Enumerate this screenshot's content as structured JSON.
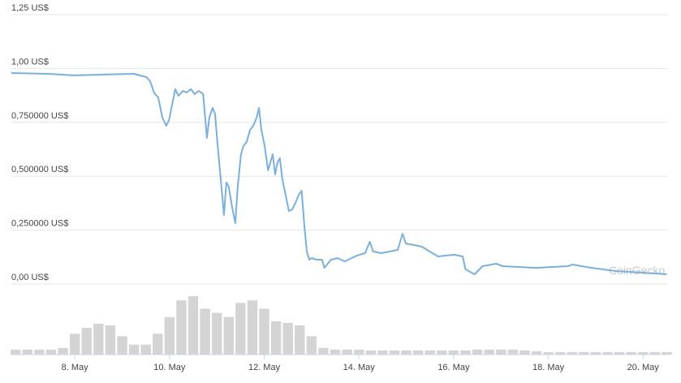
{
  "chart_data": {
    "type": "line",
    "watermark": "CoinGecko",
    "x": [
      6.66,
      7.45,
      7.97,
      8.48,
      9.25,
      9.51,
      9.59,
      9.68,
      9.76,
      9.85,
      9.93,
      9.99,
      10.05,
      10.12,
      10.19,
      10.28,
      10.36,
      10.45,
      10.53,
      10.62,
      10.71,
      10.79,
      10.84,
      10.91,
      10.96,
      11.01,
      11.08,
      11.15,
      11.2,
      11.25,
      11.32,
      11.39,
      11.44,
      11.51,
      11.56,
      11.63,
      11.7,
      11.77,
      11.84,
      11.89,
      11.94,
      12.01,
      12.08,
      12.13,
      12.18,
      12.23,
      12.28,
      12.33,
      12.38,
      12.45,
      12.52,
      12.59,
      12.66,
      12.73,
      12.79,
      12.85,
      12.9,
      12.95,
      13.0,
      13.1,
      13.22,
      13.27,
      13.41,
      13.55,
      13.7,
      13.96,
      14.13,
      14.23,
      14.3,
      14.47,
      14.82,
      14.92,
      14.99,
      15.16,
      15.33,
      15.67,
      16.01,
      16.19,
      16.25,
      16.44,
      16.61,
      16.9,
      17.04,
      17.73,
      18.41,
      18.51,
      18.92,
      19.44,
      19.95,
      20.5
    ],
    "series": [
      {
        "color": "#78b0e3",
        "values": [
          0.979,
          0.975,
          0.968,
          0.971,
          0.975,
          0.96,
          0.941,
          0.885,
          0.866,
          0.772,
          0.734,
          0.761,
          0.828,
          0.904,
          0.873,
          0.896,
          0.889,
          0.904,
          0.881,
          0.896,
          0.881,
          0.678,
          0.772,
          0.817,
          0.791,
          0.659,
          0.489,
          0.32,
          0.471,
          0.452,
          0.358,
          0.282,
          0.452,
          0.602,
          0.64,
          0.659,
          0.715,
          0.734,
          0.772,
          0.817,
          0.715,
          0.64,
          0.527,
          0.565,
          0.602,
          0.508,
          0.565,
          0.584,
          0.489,
          0.414,
          0.339,
          0.346,
          0.377,
          0.414,
          0.433,
          0.264,
          0.151,
          0.113,
          0.12,
          0.113,
          0.113,
          0.075,
          0.113,
          0.12,
          0.105,
          0.132,
          0.143,
          0.196,
          0.151,
          0.143,
          0.158,
          0.233,
          0.188,
          0.181,
          0.173,
          0.128,
          0.136,
          0.128,
          0.068,
          0.045,
          0.083,
          0.094,
          0.083,
          0.075,
          0.083,
          0.09,
          0.075,
          0.06,
          0.053,
          0.045
        ]
      }
    ],
    "volume": {
      "color": "#d4d4d4",
      "x": [
        6.75,
        7.0,
        7.25,
        7.5,
        7.75,
        8.0,
        8.25,
        8.5,
        8.75,
        9.0,
        9.25,
        9.5,
        9.75,
        10.0,
        10.25,
        10.5,
        10.75,
        11.0,
        11.25,
        11.5,
        11.75,
        12.0,
        12.25,
        12.5,
        12.75,
        13.0,
        13.25,
        13.5,
        13.75,
        14.0,
        14.25,
        14.5,
        14.75,
        15.0,
        15.25,
        15.5,
        15.75,
        16.0,
        16.25,
        16.5,
        16.75,
        17.0,
        17.25,
        17.5,
        17.75,
        18.0,
        18.25,
        18.5,
        18.75,
        19.0,
        19.25,
        19.5,
        19.75,
        20.0,
        20.25,
        20.5
      ],
      "values": [
        6,
        6,
        6,
        6,
        8,
        25,
        32,
        37,
        35,
        22,
        12,
        12,
        25,
        45,
        65,
        70,
        55,
        50,
        45,
        62,
        65,
        55,
        40,
        38,
        35,
        22,
        8,
        6,
        6,
        6,
        5,
        5,
        5,
        5,
        5,
        5,
        5,
        5,
        5,
        6,
        6,
        6,
        6,
        5,
        4,
        3,
        3,
        3,
        3,
        3,
        3,
        3,
        3,
        3,
        3,
        3
      ]
    },
    "xlim": [
      6.66,
      20.51
    ],
    "xticks": [
      {
        "value": 8,
        "label": "8. May"
      },
      {
        "value": 10,
        "label": "10. May"
      },
      {
        "value": 12,
        "label": "12. May"
      },
      {
        "value": 14,
        "label": "14. May"
      },
      {
        "value": 16,
        "label": "16. May"
      },
      {
        "value": 18,
        "label": "18. May"
      },
      {
        "value": 20,
        "label": "20. May"
      }
    ],
    "ylim": [
      0,
      1.25
    ],
    "yticks": [
      {
        "value": 0,
        "label": "0,00 US$"
      },
      {
        "value": 0.25,
        "label": "0,250000 US$"
      },
      {
        "value": 0.5,
        "label": "0,500000 US$"
      },
      {
        "value": 0.75,
        "label": "0,750000 US$"
      },
      {
        "value": 1,
        "label": "1,00 US$"
      },
      {
        "value": 1.25,
        "label": "1,25 US$"
      }
    ],
    "grid": true
  }
}
